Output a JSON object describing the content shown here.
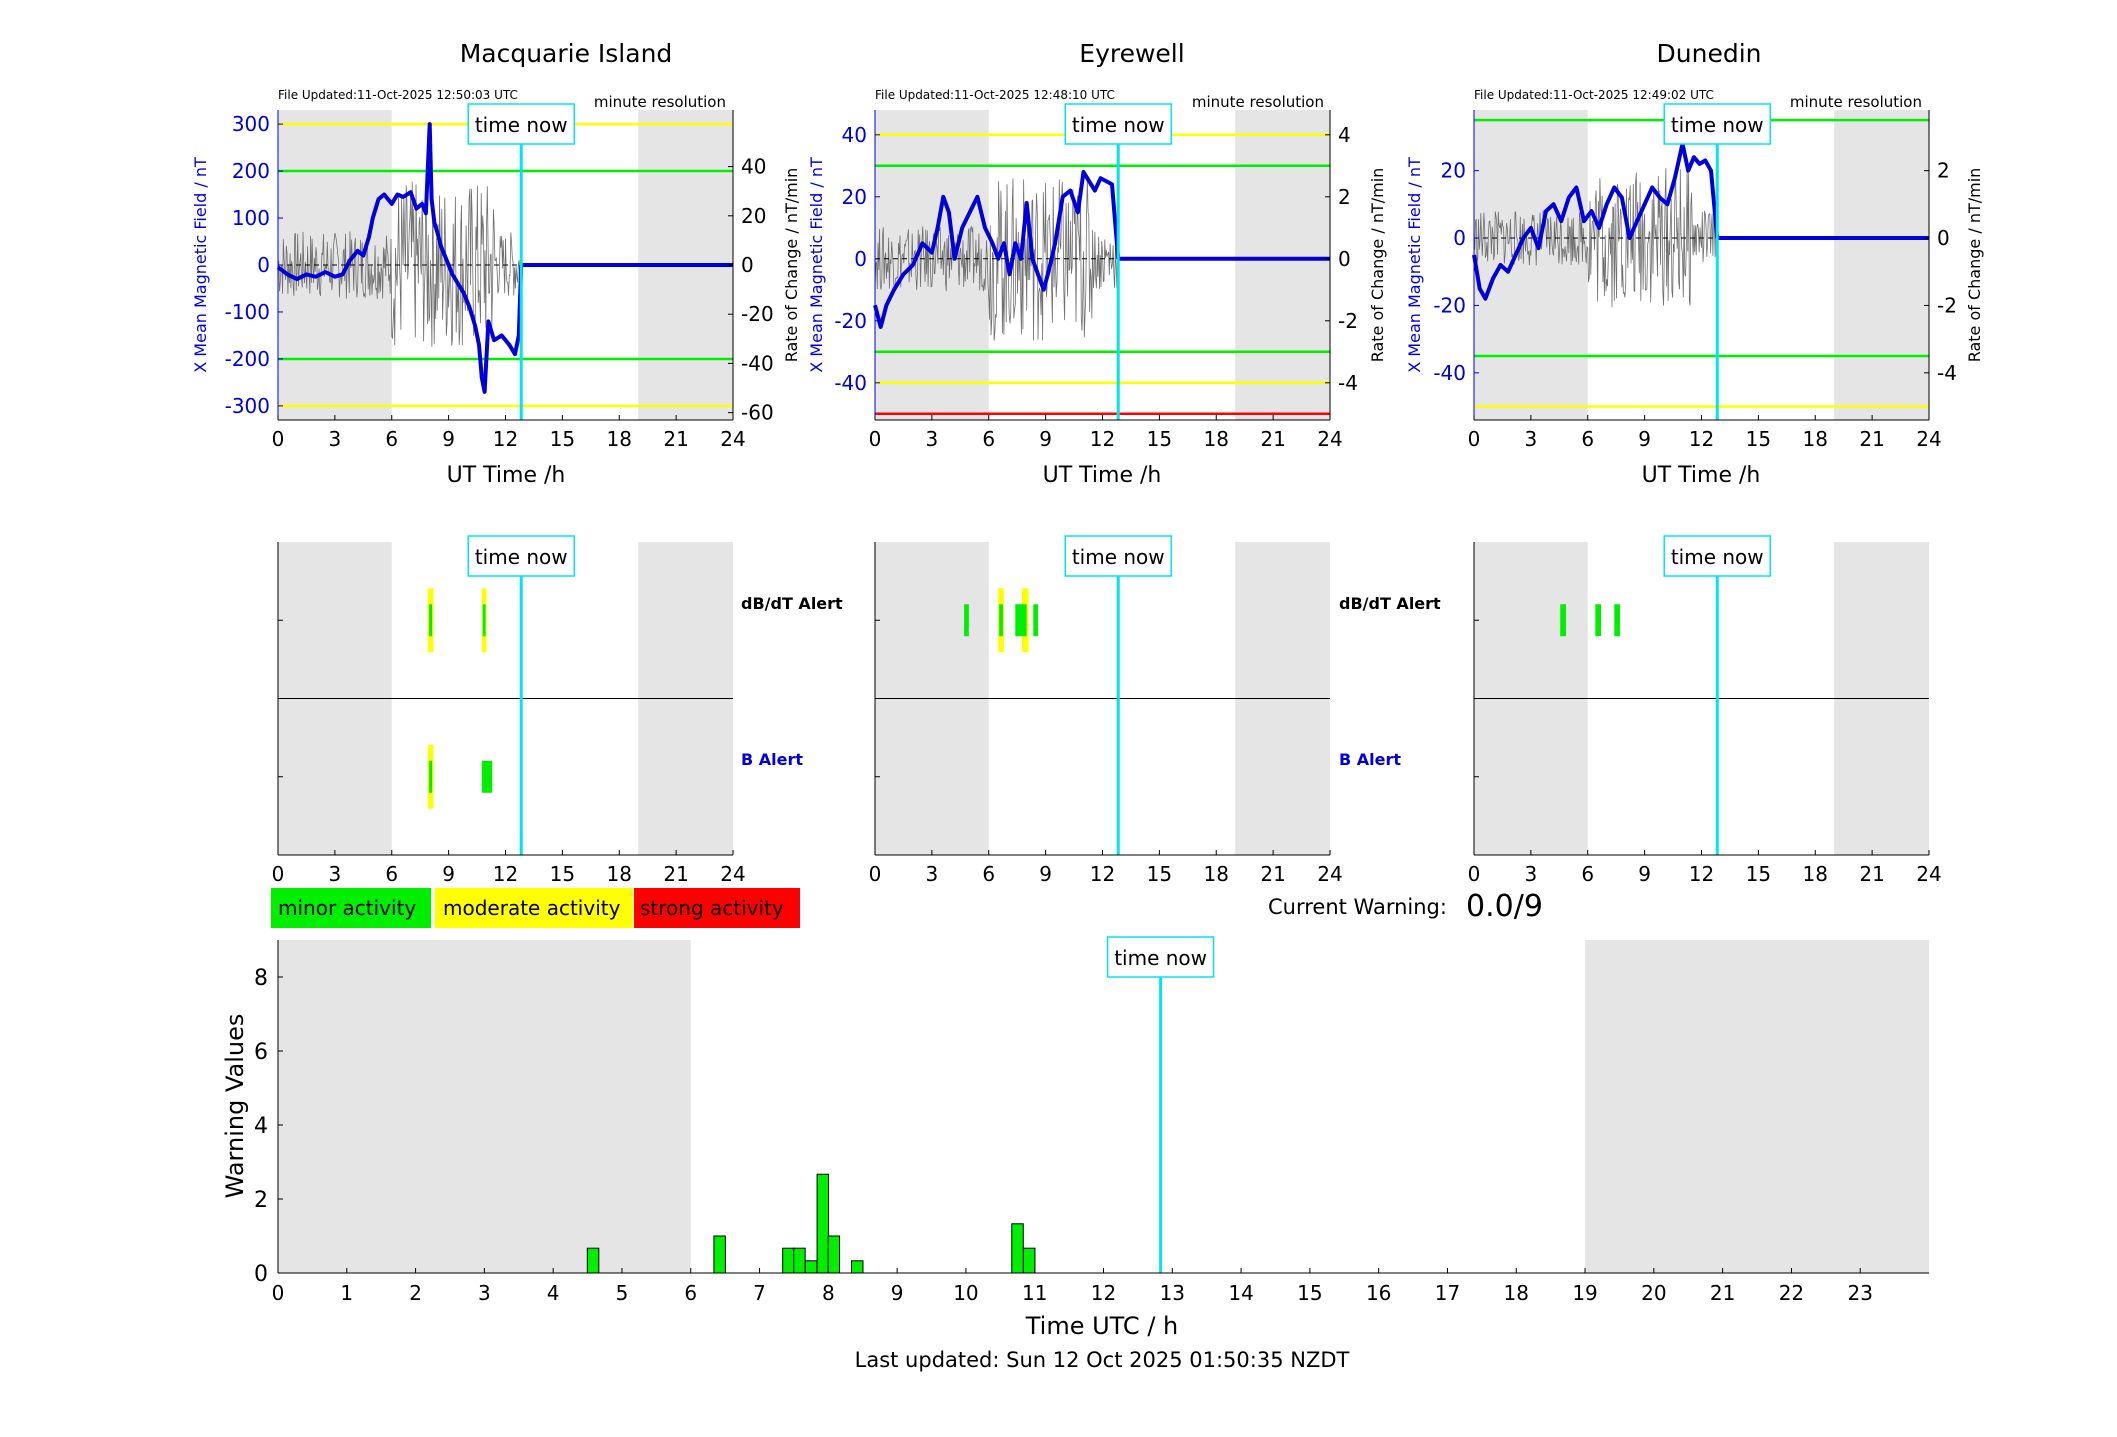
{
  "time_now_label": "time now",
  "axis_labels": {
    "ut_time": "UT Time /h",
    "x_mean_field": "X Mean Magnetic Field / nT",
    "rate_of_change": "Rate of Change / nT/min",
    "warning_values": "Warning Values",
    "time_utc": "Time UTC / h"
  },
  "minute_resolution": "minute resolution",
  "colors": {
    "field": "#0000dd",
    "rate": "#707070",
    "minor": "#00ee00",
    "moderate": "#ffff00",
    "strong": "#ff0000",
    "time_now": "#00e5ee",
    "night_shade": "#e5e5e5"
  },
  "alert_labels": {
    "dbdt": "dB/dT Alert",
    "b": "B Alert"
  },
  "legend": [
    {
      "label": "minor activity",
      "color": "#00ee00"
    },
    {
      "label": "moderate activity",
      "color": "#ffff00"
    },
    {
      "label": "strong activity",
      "color": "#ff0000"
    }
  ],
  "current_warning": {
    "label": "Current Warning:",
    "value": "0.0/9"
  },
  "footer": "Last updated: Sun 12 Oct 2025 01:50:35 NZDT",
  "chart_data": [
    {
      "type": "line",
      "title": "Macquarie Island",
      "file_updated": "File Updated:11-Oct-2025 12:50:03 UTC",
      "xlabel": "UT Time /h",
      "ylabel": "X Mean Magnetic Field / nT",
      "y2label": "Rate of Change / nT/min",
      "xlim": [
        0,
        24
      ],
      "ylim": [
        -330,
        330
      ],
      "y2lim": [
        -63,
        63
      ],
      "xticks": [
        0,
        3,
        6,
        9,
        12,
        15,
        18,
        21,
        24
      ],
      "yticks": [
        -300,
        -200,
        -100,
        0,
        100,
        200,
        300
      ],
      "y2ticks": [
        -60,
        -40,
        -20,
        0,
        20,
        40
      ],
      "time_now": 12.83,
      "night_shade": [
        [
          0,
          6
        ],
        [
          19,
          24
        ]
      ],
      "thresholds": [
        {
          "value": 300,
          "level": "moderate"
        },
        {
          "value": 200,
          "level": "minor"
        },
        {
          "value": -200,
          "level": "minor"
        },
        {
          "value": -300,
          "level": "moderate"
        }
      ],
      "series": [
        {
          "x": [
            0,
            0.5,
            1,
            1.5,
            2,
            2.5,
            3,
            3.4,
            3.8,
            4.2,
            4.5,
            4.8,
            5,
            5.3,
            5.6,
            6,
            6.3,
            6.6,
            7,
            7.3,
            7.6,
            7.8,
            8,
            8.1,
            8.25,
            8.4,
            8.6,
            8.9,
            9.2,
            9.5,
            9.8,
            10.1,
            10.4,
            10.6,
            10.75,
            10.9,
            11.1,
            11.4,
            11.8,
            12.2,
            12.5,
            12.7,
            12.83
          ],
          "values": [
            -5,
            -20,
            -30,
            -20,
            -25,
            -15,
            -25,
            -20,
            10,
            30,
            20,
            60,
            100,
            140,
            150,
            130,
            150,
            145,
            155,
            120,
            130,
            110,
            300,
            140,
            90,
            70,
            40,
            10,
            -20,
            -40,
            -60,
            -90,
            -130,
            -170,
            -240,
            -270,
            -120,
            -160,
            -150,
            -170,
            -190,
            -150,
            0
          ]
        },
        {
          "x": [
            12.83,
            24
          ],
          "values": [
            0,
            0
          ]
        }
      ]
    },
    {
      "type": "line",
      "title": "Eyrewell",
      "file_updated": "File Updated:11-Oct-2025 12:48:10 UTC",
      "xlabel": "UT Time /h",
      "ylabel": "X Mean Magnetic Field / nT",
      "y2label": "Rate of Change / nT/min",
      "xlim": [
        0,
        24
      ],
      "ylim": [
        -52,
        48
      ],
      "y2lim": [
        -5.2,
        4.8
      ],
      "xticks": [
        0,
        3,
        6,
        9,
        12,
        15,
        18,
        21,
        24
      ],
      "yticks": [
        -40,
        -20,
        0,
        20,
        40
      ],
      "y2ticks": [
        -4,
        -2,
        0,
        2,
        4
      ],
      "time_now": 12.83,
      "night_shade": [
        [
          0,
          6
        ],
        [
          19,
          24
        ]
      ],
      "thresholds": [
        {
          "value": 40,
          "level": "moderate"
        },
        {
          "value": 30,
          "level": "minor"
        },
        {
          "value": -30,
          "level": "minor"
        },
        {
          "value": -40,
          "level": "moderate"
        },
        {
          "value": -50,
          "level": "strong"
        }
      ],
      "series": [
        {
          "x": [
            0,
            0.3,
            0.6,
            1,
            1.5,
            2,
            2.5,
            3,
            3.3,
            3.6,
            3.9,
            4.2,
            4.6,
            5,
            5.4,
            5.8,
            6.2,
            6.5,
            6.8,
            7.1,
            7.4,
            7.7,
            8,
            8.3,
            8.6,
            8.9,
            9.2,
            9.5,
            9.9,
            10.3,
            10.7,
            11,
            11.3,
            11.6,
            11.9,
            12.2,
            12.5,
            12.83
          ],
          "values": [
            -15,
            -22,
            -15,
            -10,
            -5,
            -2,
            5,
            2,
            10,
            20,
            15,
            0,
            10,
            15,
            20,
            10,
            5,
            0,
            5,
            -5,
            5,
            0,
            18,
            0,
            -5,
            -10,
            -3,
            5,
            20,
            22,
            15,
            28,
            25,
            22,
            26,
            25,
            24,
            0
          ]
        },
        {
          "x": [
            12.83,
            24
          ],
          "values": [
            0,
            0
          ]
        }
      ]
    },
    {
      "type": "line",
      "title": "Dunedin",
      "file_updated": "File Updated:11-Oct-2025 12:49:02 UTC",
      "xlabel": "UT Time /h",
      "ylabel": "X Mean Magnetic Field / nT",
      "y2label": "Rate of Change / nT/min",
      "xlim": [
        0,
        24
      ],
      "ylim": [
        -54,
        38
      ],
      "y2lim": [
        -5.4,
        3.8
      ],
      "xticks": [
        0,
        3,
        6,
        9,
        12,
        15,
        18,
        21,
        24
      ],
      "yticks": [
        -40,
        -20,
        0,
        20
      ],
      "y2ticks": [
        -4,
        -2,
        0,
        2
      ],
      "time_now": 12.83,
      "night_shade": [
        [
          0,
          6
        ],
        [
          19,
          24
        ]
      ],
      "thresholds": [
        {
          "value": 35,
          "level": "minor"
        },
        {
          "value": -35,
          "level": "minor"
        },
        {
          "value": -50,
          "level": "moderate"
        }
      ],
      "series": [
        {
          "x": [
            0,
            0.3,
            0.6,
            1,
            1.4,
            1.8,
            2.2,
            2.6,
            3,
            3.4,
            3.8,
            4.2,
            4.6,
            5,
            5.4,
            5.8,
            6.2,
            6.6,
            7,
            7.4,
            7.8,
            8.2,
            8.6,
            9,
            9.4,
            9.8,
            10.2,
            10.6,
            11,
            11.3,
            11.6,
            11.9,
            12.2,
            12.5,
            12.83
          ],
          "values": [
            -5,
            -15,
            -18,
            -12,
            -8,
            -10,
            -5,
            0,
            3,
            -3,
            8,
            10,
            5,
            12,
            15,
            5,
            8,
            3,
            10,
            15,
            12,
            0,
            5,
            10,
            15,
            12,
            10,
            18,
            28,
            20,
            24,
            22,
            23,
            20,
            0
          ]
        },
        {
          "x": [
            12.83,
            24
          ],
          "values": [
            0,
            0
          ]
        }
      ]
    },
    {
      "type": "bar",
      "title": "",
      "xlabel": "Time UTC / h",
      "ylabel": "Warning Values",
      "xlim": [
        0,
        24
      ],
      "ylim": [
        0,
        9
      ],
      "xticks": [
        0,
        1,
        2,
        3,
        4,
        5,
        6,
        7,
        8,
        9,
        10,
        11,
        12,
        13,
        14,
        15,
        16,
        17,
        18,
        19,
        20,
        21,
        22,
        23
      ],
      "yticks": [
        0,
        2,
        4,
        6,
        8
      ],
      "time_now": 12.83,
      "night_shade": [
        [
          0,
          6
        ],
        [
          19,
          24
        ]
      ],
      "x": [
        4.58,
        6.42,
        7.42,
        7.58,
        7.75,
        7.92,
        8.08,
        8.42,
        10.75,
        10.92
      ],
      "values": [
        0.67,
        1.0,
        0.67,
        0.67,
        0.33,
        2.67,
        1.0,
        0.33,
        1.33,
        0.67
      ],
      "bar_width": 0.167
    }
  ],
  "alert_data": [
    {
      "station": "Macquarie Island",
      "dbdt": [
        {
          "start": 7.9,
          "end": 8.2,
          "level": "moderate"
        },
        {
          "start": 7.97,
          "end": 8.13,
          "level": "minor"
        },
        {
          "start": 10.75,
          "end": 11.0,
          "level": "moderate"
        },
        {
          "start": 10.8,
          "end": 10.95,
          "level": "minor"
        }
      ],
      "b": [
        {
          "start": 7.9,
          "end": 8.2,
          "level": "moderate"
        },
        {
          "start": 7.97,
          "end": 8.13,
          "level": "minor"
        },
        {
          "start": 10.75,
          "end": 11.3,
          "level": "minor"
        }
      ]
    },
    {
      "station": "Eyrewell",
      "dbdt": [
        {
          "start": 4.7,
          "end": 4.95,
          "level": "minor"
        },
        {
          "start": 6.5,
          "end": 6.8,
          "level": "moderate"
        },
        {
          "start": 6.55,
          "end": 6.75,
          "level": "minor"
        },
        {
          "start": 7.4,
          "end": 7.65,
          "level": "minor"
        },
        {
          "start": 7.75,
          "end": 8.1,
          "level": "moderate"
        },
        {
          "start": 7.65,
          "end": 8.0,
          "level": "minor"
        },
        {
          "start": 8.35,
          "end": 8.6,
          "level": "minor"
        }
      ],
      "b": []
    },
    {
      "station": "Dunedin",
      "dbdt": [
        {
          "start": 4.55,
          "end": 4.85,
          "level": "minor"
        },
        {
          "start": 6.4,
          "end": 6.7,
          "level": "minor"
        },
        {
          "start": 7.4,
          "end": 7.7,
          "level": "minor"
        }
      ],
      "b": []
    }
  ]
}
